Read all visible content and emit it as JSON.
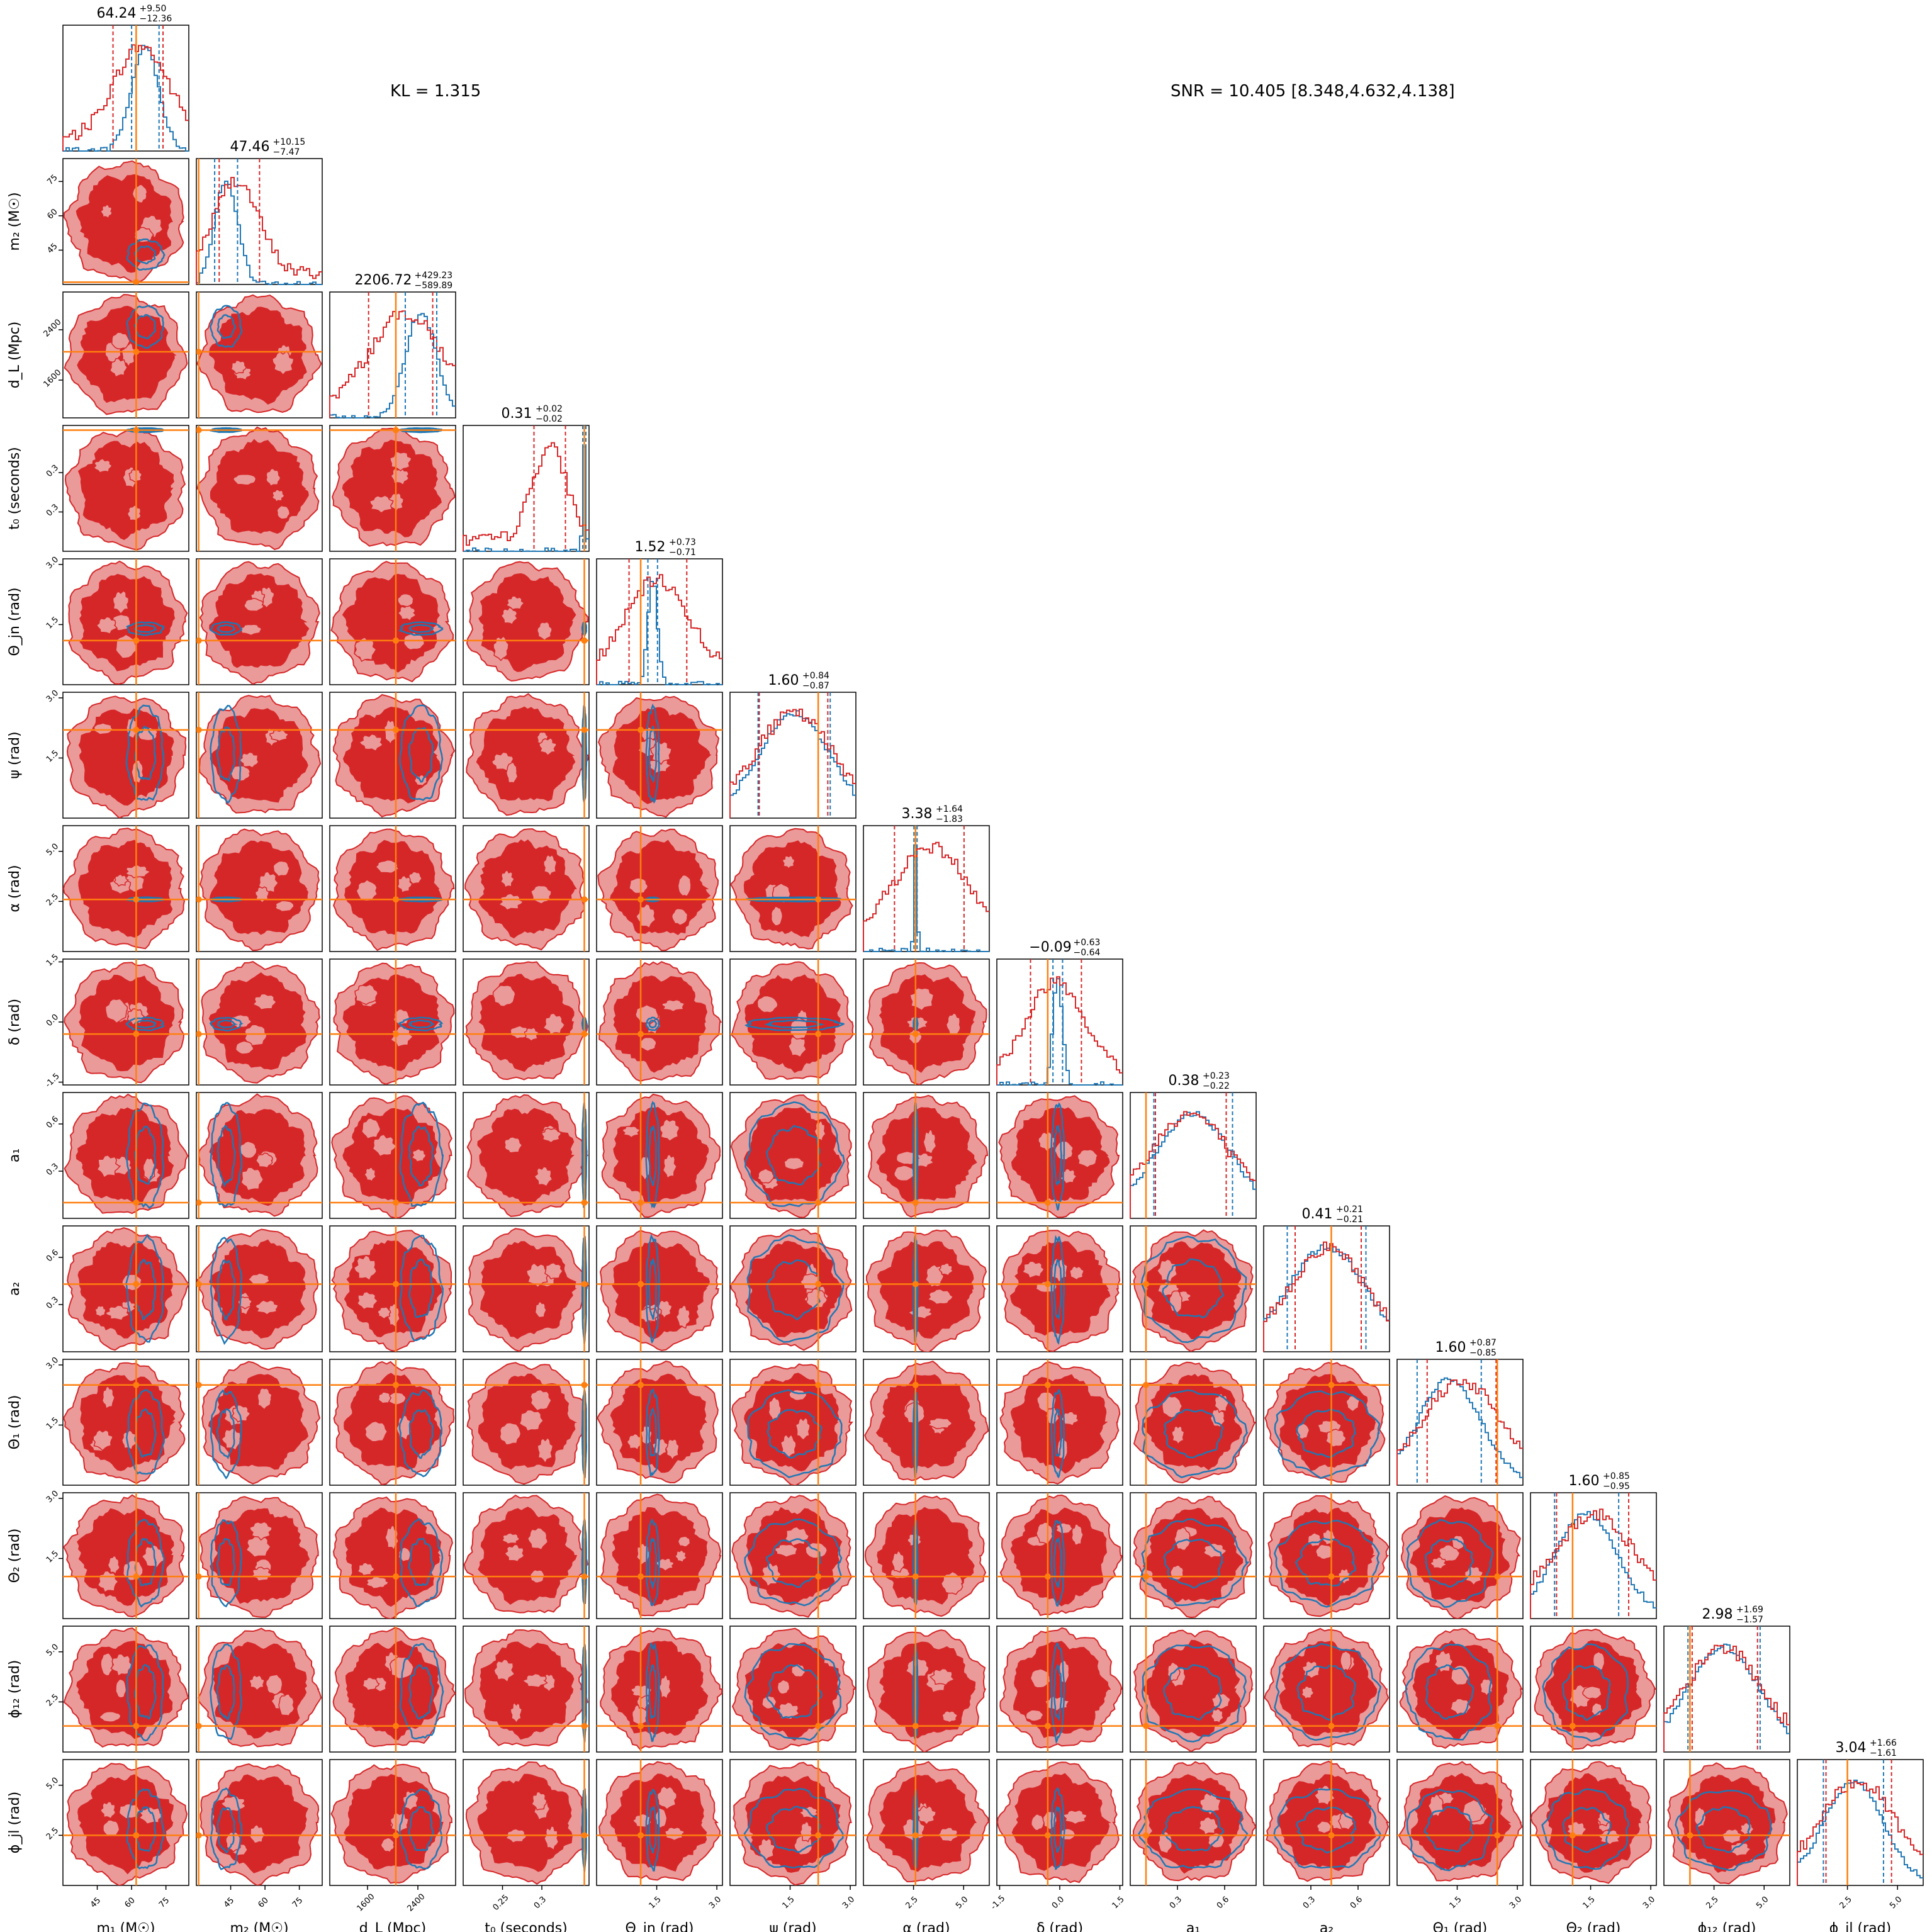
{
  "chart_data": {
    "type": "corner",
    "annotations": {
      "kl": "KL = 1.315",
      "snr": "SNR = 10.405 [8.348,4.632,4.138]"
    },
    "colors": {
      "posterior_a": "#d62728",
      "posterior_a_light": "#eb9a9a",
      "posterior_b": "#1f77b4",
      "injection": "#ff7f0e"
    },
    "parameters": [
      {
        "label": "m₁ (M☉)",
        "range": [
          30,
          85
        ],
        "ticks": [
          45,
          60,
          75
        ],
        "median": 64.24,
        "plus": 9.5,
        "minus": 12.36,
        "title": "64.24",
        "title_sup": "+9.50",
        "title_sub": "−12.36",
        "truth": 62,
        "b_center": 66,
        "b_width": 6
      },
      {
        "label": "m₂ (M☉)",
        "range": [
          30,
          85
        ],
        "ticks": [
          45,
          60,
          75
        ],
        "median": 47.46,
        "plus": 10.15,
        "minus": 7.47,
        "title": "47.46",
        "title_sup": "+10.15",
        "title_sub": "−7.47",
        "truth": 31,
        "b_center": 43,
        "b_width": 5
      },
      {
        "label": "d_L (Mpc)",
        "range": [
          1000,
          3000
        ],
        "ticks": [
          1600,
          2400
        ],
        "median": 2206.72,
        "plus": 429.23,
        "minus": 589.89,
        "title": "2206.72",
        "title_sup": "+429.23",
        "title_sub": "−589.89",
        "truth": 2050,
        "b_center": 2450,
        "b_width": 250
      },
      {
        "label": "t₀ (seconds)",
        "range": [
          0.2,
          0.36
        ],
        "ticks": [
          0.25,
          0.3
        ],
        "median": 0.31,
        "plus": 0.02,
        "minus": 0.02,
        "title": "0.31",
        "title_sup": "+0.02",
        "title_sub": "−0.02",
        "truth": 0.354,
        "b_center": 0.354,
        "b_width": 0.002
      },
      {
        "label": "Θ_jn (rad)",
        "range": [
          0,
          3.14
        ],
        "ticks": [
          1.5,
          3.0
        ],
        "median": 1.52,
        "plus": 0.73,
        "minus": 0.71,
        "title": "1.52",
        "title_sup": "+0.73",
        "title_sub": "−0.71",
        "truth": 1.1,
        "b_center": 1.4,
        "b_width": 0.12
      },
      {
        "label": "ψ (rad)",
        "range": [
          0,
          3.14
        ],
        "ticks": [
          1.5,
          3.0
        ],
        "median": 1.6,
        "plus": 0.84,
        "minus": 0.87,
        "title": "1.60",
        "title_sup": "+0.84",
        "title_sub": "−0.87",
        "truth": 2.2,
        "b_center": 1.6,
        "b_width": 0.9
      },
      {
        "label": "α (rad)",
        "range": [
          0,
          6.28
        ],
        "ticks": [
          2.5,
          5.0
        ],
        "median": 3.38,
        "plus": 1.64,
        "minus": 1.83,
        "title": "3.38",
        "title_sup": "+1.64",
        "title_sub": "−1.83",
        "truth": 2.6,
        "b_center": 2.6,
        "b_width": 0.08
      },
      {
        "label": "δ (rad)",
        "range": [
          -1.57,
          1.57
        ],
        "ticks": [
          -1.5,
          0.0,
          1.5
        ],
        "median": -0.09,
        "plus": 0.63,
        "minus": 0.64,
        "title": "−0.09",
        "title_sup": "+0.63",
        "title_sub": "−0.64",
        "truth": -0.3,
        "b_center": -0.05,
        "b_width": 0.12
      },
      {
        "label": "a₁",
        "range": [
          0,
          0.8
        ],
        "ticks": [
          0.3,
          0.6
        ],
        "median": 0.38,
        "plus": 0.23,
        "minus": 0.22,
        "title": "0.38",
        "title_sup": "+0.23",
        "title_sub": "−0.22",
        "truth": 0.1,
        "b_center": 0.4,
        "b_width": 0.25
      },
      {
        "label": "a₂",
        "range": [
          0,
          0.8
        ],
        "ticks": [
          0.3,
          0.6
        ],
        "median": 0.41,
        "plus": 0.21,
        "minus": 0.21,
        "title": "0.41",
        "title_sup": "+0.21",
        "title_sub": "−0.21",
        "truth": 0.43,
        "b_center": 0.4,
        "b_width": 0.25
      },
      {
        "label": "Θ₁ (rad)",
        "range": [
          0,
          3.14
        ],
        "ticks": [
          1.5,
          3.0
        ],
        "median": 1.6,
        "plus": 0.87,
        "minus": 0.85,
        "title": "1.60",
        "title_sup": "+0.87",
        "title_sub": "−0.85",
        "truth": 2.5,
        "b_center": 1.3,
        "b_width": 0.8
      },
      {
        "label": "Θ₂ (rad)",
        "range": [
          0,
          3.14
        ],
        "ticks": [
          1.5,
          3.0
        ],
        "median": 1.6,
        "plus": 0.85,
        "minus": 0.95,
        "title": "1.60",
        "title_sup": "+0.85",
        "title_sub": "−0.95",
        "truth": 1.05,
        "b_center": 1.4,
        "b_width": 0.8
      },
      {
        "label": "ϕ₁₂ (rad)",
        "range": [
          0,
          6.28
        ],
        "ticks": [
          2.5,
          5.0
        ],
        "median": 2.98,
        "plus": 1.69,
        "minus": 1.57,
        "title": "2.98",
        "title_sup": "+1.69",
        "title_sub": "−1.57",
        "truth": 1.3,
        "b_center": 3.0,
        "b_width": 1.8
      },
      {
        "label": "ϕ_jl (rad)",
        "range": [
          0,
          6.28
        ],
        "ticks": [
          2.5,
          5.0
        ],
        "median": 3.04,
        "plus": 1.66,
        "minus": 1.61,
        "title": "3.04",
        "title_sup": "+1.66",
        "title_sub": "−1.61",
        "truth": 2.5,
        "b_center": 2.8,
        "b_width": 1.5
      }
    ]
  }
}
